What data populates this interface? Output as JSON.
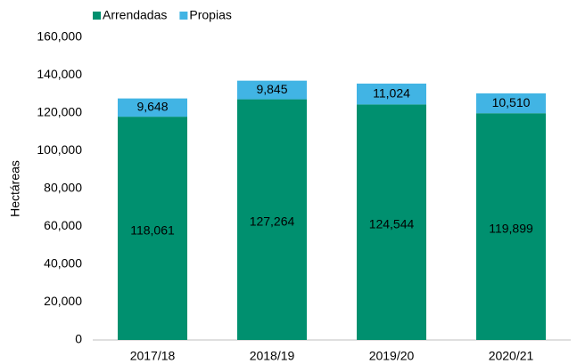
{
  "chart_data": {
    "type": "stacked_bar",
    "categories": [
      "2017/18",
      "2018/19",
      "2019/20",
      "2020/21"
    ],
    "series": [
      {
        "name": "Arrendadas",
        "color": "#00906f",
        "values": [
          118061,
          127264,
          124544,
          119899
        ],
        "value_labels": [
          "118,061",
          "127,264",
          "124,544",
          "119,899"
        ]
      },
      {
        "name": "Propias",
        "color": "#41b4e4",
        "values": [
          9648,
          9845,
          11024,
          10510
        ],
        "value_labels": [
          "9,648",
          "9,845",
          "11,024",
          "10,510"
        ]
      }
    ],
    "ylabel": "Hectáreas",
    "ylim": [
      0,
      160000
    ],
    "yticks": [
      0,
      {
        "value": 20000,
        "label": "20,000"
      },
      {
        "value": 40000,
        "label": "40,000"
      },
      {
        "value": 60000,
        "label": "60,000"
      },
      {
        "value": 80000,
        "label": "80,000"
      },
      {
        "value": 100000,
        "label": "100,000"
      },
      {
        "value": 120000,
        "label": "120,000"
      },
      {
        "value": 140000,
        "label": "140,000"
      },
      {
        "value": 160000,
        "label": "160,000"
      }
    ],
    "grid": false,
    "legend": "top-left"
  }
}
